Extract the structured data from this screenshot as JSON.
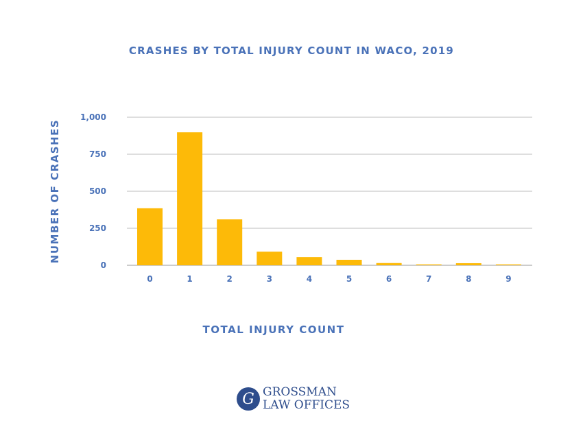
{
  "chart_data": {
    "type": "bar",
    "title": "CRASHES BY TOTAL INJURY COUNT IN WACO, 2019",
    "xlabel": "TOTAL INJURY COUNT",
    "ylabel": "NUMBER OF CRASHES",
    "categories": [
      "0",
      "1",
      "2",
      "3",
      "4",
      "5",
      "6",
      "7",
      "8",
      "9"
    ],
    "values": [
      385,
      898,
      310,
      92,
      55,
      37,
      15,
      6,
      14,
      6
    ],
    "ylim": [
      0,
      1000
    ],
    "yticks": [
      0,
      250,
      500,
      750,
      1000
    ],
    "ytick_labels": [
      "0",
      "250",
      "500",
      "750",
      "1,000"
    ],
    "grid": true,
    "legend": "none",
    "colors": {
      "bar": "#FDBA08",
      "text": "#4A72B8",
      "grid": "#BDBDBD",
      "axis": "#999999"
    }
  },
  "logo": {
    "monogram": "G",
    "line1": "GROSSMAN",
    "line2": "LAW OFFICES",
    "color": "#2E4D8C"
  }
}
